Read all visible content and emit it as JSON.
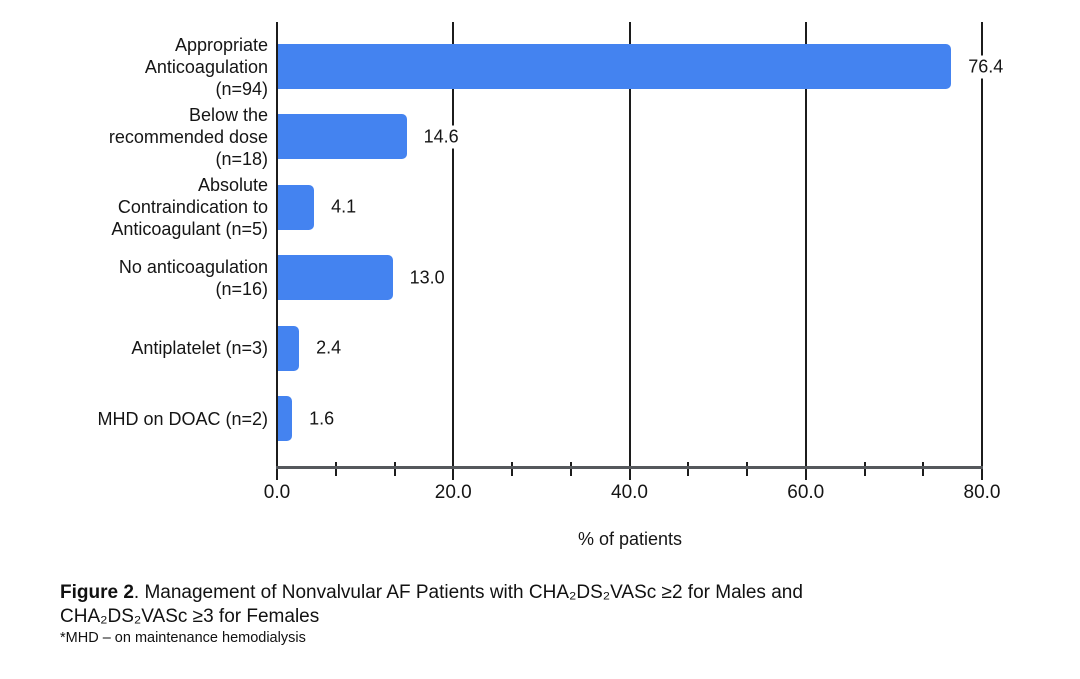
{
  "chart_data": {
    "type": "bar",
    "orientation": "horizontal",
    "title": "",
    "xlabel": "% of patients",
    "ylabel": "",
    "xlim": [
      0,
      80
    ],
    "x_major_ticks": [
      0,
      20,
      40,
      60,
      80
    ],
    "x_tick_labels": [
      "0.0",
      "20.0",
      "40.0",
      "60.0",
      "80.0"
    ],
    "x_minor_ticks_per_interval": 2,
    "grid": "vertical-major-lines",
    "legend": "none",
    "bar_color": "#4483F0",
    "categories": [
      {
        "label": "Appropriate Anticoagulation (n=94)",
        "lines": [
          "Appropriate",
          "Anticoagulation",
          "(n=94)"
        ],
        "n": 94
      },
      {
        "label": "Below the recommended dose (n=18)",
        "lines": [
          "Below the",
          "recommended dose",
          "(n=18)"
        ],
        "n": 18
      },
      {
        "label": "Absolute Contraindication to Anticoagulant (n=5)",
        "lines": [
          "Absolute",
          "Contraindication to",
          "Anticoagulant (n=5)"
        ],
        "n": 5
      },
      {
        "label": "No anticoagulation (n=16)",
        "lines": [
          "No anticoagulation",
          "(n=16)"
        ],
        "n": 16
      },
      {
        "label": "Antiplatelet (n=3)",
        "lines": [
          "Antiplatelet (n=3)"
        ],
        "n": 3
      },
      {
        "label": "MHD on DOAC (n=2)",
        "lines": [
          "MHD on DOAC (n=2)"
        ],
        "n": 2
      }
    ],
    "values": [
      76.4,
      14.6,
      4.1,
      13.0,
      2.4,
      1.6
    ],
    "value_labels": [
      "76.4",
      "14.6",
      "4.1",
      "13.0",
      "2.4",
      "1.6"
    ]
  },
  "caption": {
    "bold": "Figure 2",
    "line1_rest": ". Management of Nonvalvular AF Patients with CHA₂DS₂VASc ≥2 for Males and",
    "line2": "CHA₂DS₂VASc ≥3 for Females",
    "footnote": "*MHD – on maintenance hemodialysis"
  },
  "colors": {
    "bar": "#4483F0",
    "gridline": "#1c1c1c",
    "axis_line": "#55585c",
    "text": "#151515",
    "background": "#ffffff"
  }
}
